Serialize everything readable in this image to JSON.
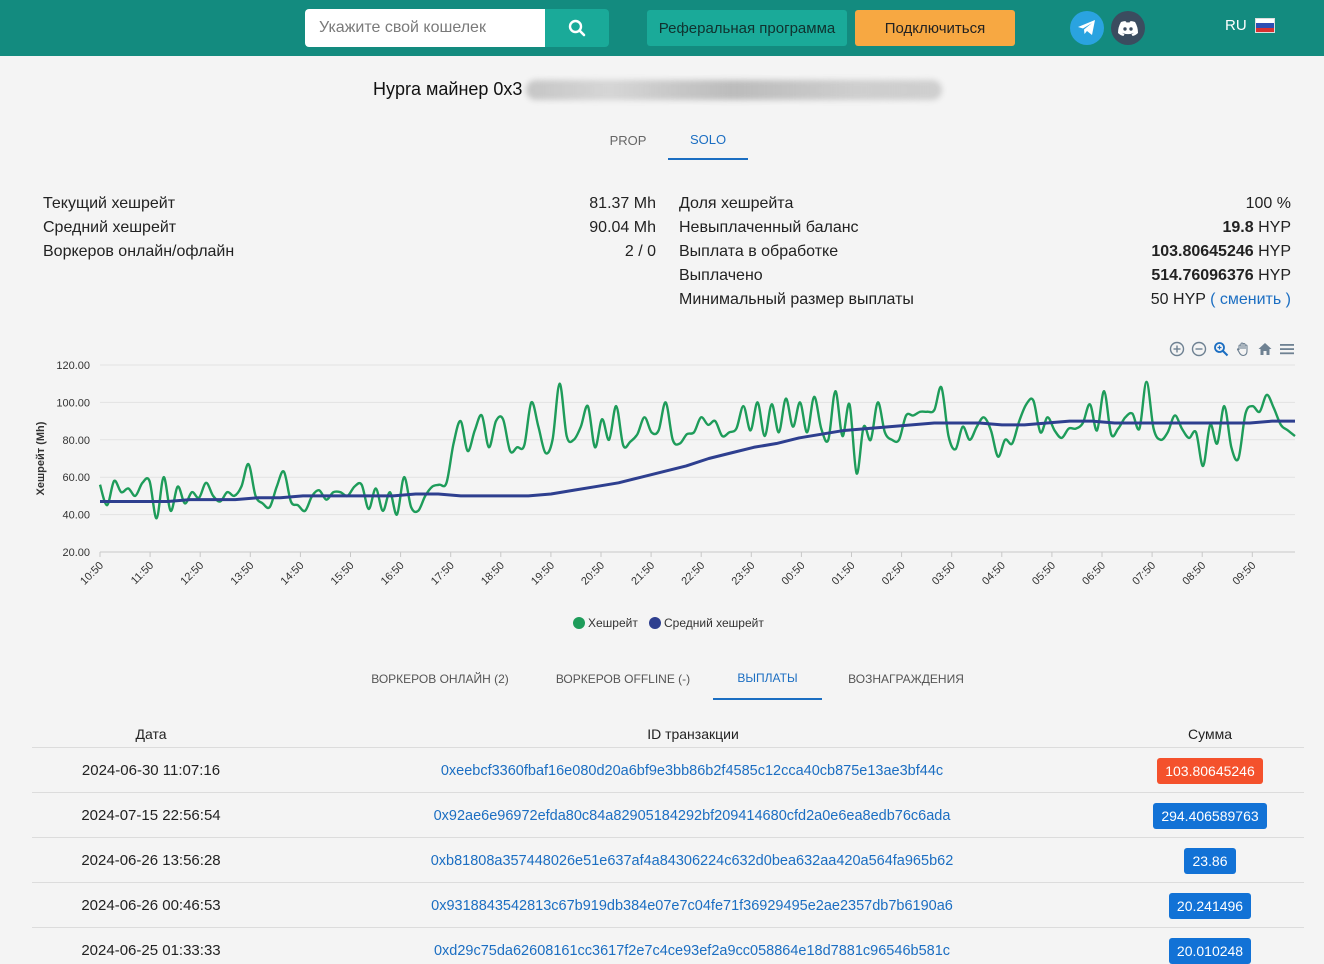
{
  "topbar": {
    "search_placeholder": "Укажите свой кошелек",
    "referral_label": "Реферальная программа",
    "connect_label": "Подключиться",
    "lang_label": "RU"
  },
  "miner": {
    "title": "Hypra майнер 0x3"
  },
  "modes": {
    "prop": "PROP",
    "solo": "SOLO",
    "active": "SOLO"
  },
  "stats_left": [
    {
      "label": "Текущий хешрейт",
      "value": "81.37 Mh"
    },
    {
      "label": "Средний хешрейт",
      "value": "90.04 Mh"
    },
    {
      "label": "Воркеров онлайн/офлайн",
      "value": "2 / 0"
    }
  ],
  "stats_right": {
    "share_label": "Доля хешрейта",
    "share_value": "100 %",
    "unpaid_label": "Невыплаченный баланс",
    "unpaid_num": "19.8",
    "unpaid_unit": "HYP",
    "pending_label": "Выплата в обработке",
    "pending_num": "103.80645246",
    "pending_unit": "HYP",
    "paid_label": "Выплачено",
    "paid_num": "514.76096376",
    "paid_unit": "HYP",
    "min_label": "Минимальный размер выплаты",
    "min_value": "50 HYP",
    "min_open": "(",
    "min_link": "сменить",
    "min_close": ")"
  },
  "chart_data": {
    "type": "line",
    "ylabel": "Хешрейт (Mh)",
    "ylim": [
      20,
      120
    ],
    "yticks": [
      "20.00",
      "40.00",
      "60.00",
      "80.00",
      "100.00",
      "120.00"
    ],
    "xticks": [
      "10:50",
      "11:50",
      "12:50",
      "13:50",
      "14:50",
      "15:50",
      "16:50",
      "17:50",
      "18:50",
      "19:50",
      "20:50",
      "21:50",
      "22:50",
      "23:50",
      "00:50",
      "01:50",
      "02:50",
      "03:50",
      "04:50",
      "05:50",
      "06:50",
      "07:50",
      "08:50",
      "09:50"
    ],
    "grid": true,
    "legend_position": "bottom-center",
    "series": [
      {
        "name": "Хешрейт",
        "color": "#1e9c5a",
        "values": [
          56,
          45,
          58,
          52,
          54,
          50,
          57,
          58,
          38,
          60,
          42,
          55,
          46,
          52,
          49,
          57,
          50,
          47,
          52,
          50,
          55,
          67,
          50,
          46,
          44,
          55,
          63,
          47,
          45,
          42,
          50,
          53,
          48,
          52,
          52,
          50,
          55,
          56,
          43,
          54,
          42,
          52,
          40,
          60,
          44,
          42,
          50,
          55,
          56,
          57,
          78,
          90,
          74,
          85,
          93,
          76,
          90,
          91,
          74,
          76,
          77,
          100,
          87,
          73,
          80,
          110,
          82,
          80,
          87,
          98,
          76,
          91,
          80,
          98,
          77,
          79,
          83,
          92,
          84,
          85,
          100,
          80,
          78,
          83,
          84,
          92,
          88,
          90,
          82,
          84,
          86,
          98,
          85,
          100,
          82,
          99,
          84,
          102,
          87,
          100,
          84,
          103,
          86,
          80,
          106,
          82,
          99,
          62,
          87,
          80,
          100,
          84,
          80,
          80,
          93,
          93,
          95,
          95,
          96,
          108,
          82,
          75,
          87,
          80,
          87,
          92,
          85,
          71,
          80,
          78,
          90,
          99,
          101,
          84,
          92,
          85,
          81,
          86,
          86,
          89,
          99,
          85,
          106,
          83,
          86,
          92,
          94,
          86,
          111,
          86,
          80,
          84,
          93,
          86,
          81,
          84,
          66,
          88,
          78,
          98,
          76,
          70,
          94,
          98,
          95,
          104,
          97,
          88,
          85,
          82
        ],
        "note_values_are_approximate": ""
      },
      {
        "name": "Средний хешрейт",
        "color": "#2e3f8f",
        "values": [
          47,
          47,
          47,
          47,
          48,
          48,
          48,
          49,
          49,
          50,
          50,
          50,
          50,
          50,
          51,
          51,
          50,
          50,
          50,
          50,
          51,
          53,
          55,
          57,
          60,
          63,
          66,
          70,
          73,
          76,
          78,
          81,
          83,
          85,
          86,
          87,
          88,
          89,
          89,
          89,
          88,
          88,
          89,
          90,
          90,
          89,
          89,
          89,
          89,
          89,
          89,
          89,
          90,
          90
        ]
      }
    ]
  },
  "section_tabs": [
    {
      "label": "ВОРКЕРОВ ОНЛАЙН (2)"
    },
    {
      "label": "ВОРКЕРОВ OFFLINE (-)"
    },
    {
      "label": "ВЫПЛАТЫ"
    },
    {
      "label": "ВОЗНАГРАЖДЕНИЯ"
    }
  ],
  "active_section": "ВЫПЛАТЫ",
  "table": {
    "headers": {
      "date": "Дата",
      "tx": "ID транзакции",
      "amount": "Сумма"
    },
    "rows": [
      {
        "date": "2024-06-30 11:07:16",
        "tx": "0xeebcf3360fbaf16e080d20a6bf9e3bb86b2f4585c12cca40cb875e13ae3bf44c",
        "amount": "103.80645246",
        "status_color": "#f4512c"
      },
      {
        "date": "2024-07-15 22:56:54",
        "tx": "0x92ae6e96972efda80c84a82905184292bf209414680cfd2a0e6ea8edb76c6ada",
        "amount": "294.406589763",
        "status_color": "#1272d6"
      },
      {
        "date": "2024-06-26 13:56:28",
        "tx": "0xb81808a357448026e51e637af4a84306224c632d0bea632aa420a564fa965b62",
        "amount": "23.86",
        "status_color": "#1272d6"
      },
      {
        "date": "2024-06-26 00:46:53",
        "tx": "0x9318843542813c67b919db384e07e7c04fe71f36929495e2ae2357db7b6190a6",
        "amount": "20.241496",
        "status_color": "#1272d6"
      },
      {
        "date": "2024-06-25 01:33:33",
        "tx": "0xd29c75da62608161cc3617f2e7c4ce93ef2a9cc058864e18d7881c96546b581c",
        "amount": "20.010248",
        "status_color": "#1272d6"
      }
    ]
  },
  "colors": {
    "topbar": "#138b7f",
    "accent": "#1aaa99",
    "connect": "#f7a842",
    "link": "#1b6ec2"
  }
}
